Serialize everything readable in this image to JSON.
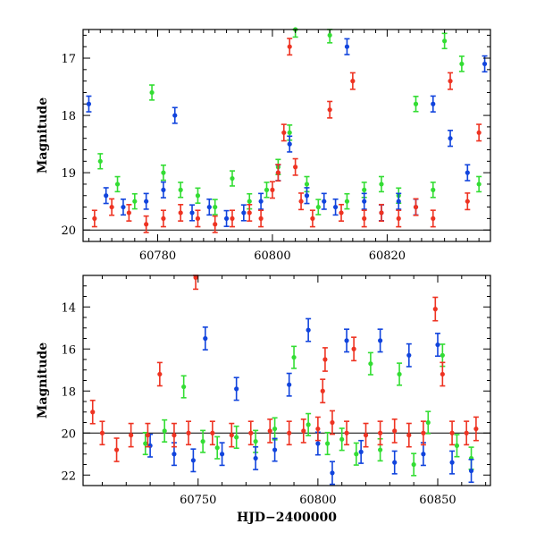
{
  "colors": {
    "green": "#33dd33",
    "blue": "#1144dd",
    "red": "#ee3322",
    "axis": "#000000"
  },
  "chart_data": [
    {
      "type": "scatter",
      "title": "",
      "xlabel": "",
      "ylabel": "Magnitude",
      "xlim": [
        60767,
        60838
      ],
      "ylim": [
        20.2,
        16.5
      ],
      "y_inverted": true,
      "xticks": [
        "60780",
        "60800",
        "60820"
      ],
      "xtick_values": [
        60780,
        60800,
        60820
      ],
      "yticks": [
        "17",
        "18",
        "19",
        "20"
      ],
      "ytick_values": [
        17,
        18,
        19,
        20
      ],
      "grid": false,
      "legend": "none",
      "series": [
        {
          "color_key": "green",
          "points": [
            [
              60770,
              18.8
            ],
            [
              60773,
              19.2
            ],
            [
              60776,
              19.5
            ],
            [
              60779,
              17.6
            ],
            [
              60781,
              19.0
            ],
            [
              60784,
              19.3
            ],
            [
              60787,
              19.4
            ],
            [
              60790,
              19.6
            ],
            [
              60793,
              19.1
            ],
            [
              60796,
              19.5
            ],
            [
              60799,
              19.3
            ],
            [
              60801,
              18.9
            ],
            [
              60803,
              18.3
            ],
            [
              60804,
              16.5
            ],
            [
              60806,
              19.2
            ],
            [
              60808,
              19.6
            ],
            [
              60810,
              16.6
            ],
            [
              60813,
              19.5
            ],
            [
              60816,
              19.3
            ],
            [
              60819,
              19.2
            ],
            [
              60822,
              19.4
            ],
            [
              60825,
              17.8
            ],
            [
              60828,
              19.3
            ],
            [
              60830,
              16.7
            ],
            [
              60833,
              17.1
            ],
            [
              60836,
              19.2
            ]
          ]
        },
        {
          "color_key": "blue",
          "points": [
            [
              60768,
              17.8
            ],
            [
              60771,
              19.4
            ],
            [
              60774,
              19.6
            ],
            [
              60778,
              19.5
            ],
            [
              60781,
              19.3
            ],
            [
              60783,
              18.0
            ],
            [
              60786,
              19.7
            ],
            [
              60789,
              19.6
            ],
            [
              60792,
              19.8
            ],
            [
              60795,
              19.7
            ],
            [
              60798,
              19.5
            ],
            [
              60801,
              19.0
            ],
            [
              60803,
              18.5
            ],
            [
              60806,
              19.4
            ],
            [
              60809,
              19.5
            ],
            [
              60811,
              19.6
            ],
            [
              60813,
              16.8
            ],
            [
              60816,
              19.5
            ],
            [
              60819,
              19.7
            ],
            [
              60822,
              19.5
            ],
            [
              60825,
              19.6
            ],
            [
              60828,
              17.8
            ],
            [
              60831,
              18.4
            ],
            [
              60834,
              19.0
            ],
            [
              60837,
              17.1
            ]
          ]
        },
        {
          "color_key": "red",
          "points": [
            [
              60769,
              19.8
            ],
            [
              60772,
              19.6
            ],
            [
              60775,
              19.7
            ],
            [
              60778,
              19.9
            ],
            [
              60781,
              19.8
            ],
            [
              60784,
              19.7
            ],
            [
              60787,
              19.8
            ],
            [
              60790,
              19.9
            ],
            [
              60793,
              19.8
            ],
            [
              60796,
              19.7
            ],
            [
              60798,
              19.8
            ],
            [
              60800,
              19.3
            ],
            [
              60801,
              19.0
            ],
            [
              60802,
              18.3
            ],
            [
              60803,
              16.8
            ],
            [
              60804,
              18.9
            ],
            [
              60805,
              19.5
            ],
            [
              60807,
              19.8
            ],
            [
              60810,
              17.9
            ],
            [
              60812,
              19.7
            ],
            [
              60814,
              17.4
            ],
            [
              60816,
              19.8
            ],
            [
              60819,
              19.7
            ],
            [
              60822,
              19.8
            ],
            [
              60825,
              19.6
            ],
            [
              60828,
              19.8
            ],
            [
              60831,
              17.4
            ],
            [
              60834,
              19.5
            ],
            [
              60836,
              18.3
            ]
          ]
        }
      ]
    },
    {
      "type": "scatter",
      "title": "",
      "xlabel": "HJD−2400000",
      "ylabel": "Magnitude",
      "xlim": [
        60702,
        60872
      ],
      "ylim": [
        22.5,
        12.5
      ],
      "y_inverted": true,
      "xticks": [
        "60750",
        "60800",
        "60850"
      ],
      "xtick_values": [
        60750,
        60800,
        60850
      ],
      "yticks": [
        "14",
        "16",
        "18",
        "20",
        "22"
      ],
      "ytick_values": [
        14,
        16,
        18,
        20,
        22
      ],
      "grid": false,
      "legend": "none",
      "series": [
        {
          "color_key": "green",
          "points": [
            [
              60728,
              20.5
            ],
            [
              60736,
              19.9
            ],
            [
              60744,
              17.8
            ],
            [
              60752,
              20.4
            ],
            [
              60758,
              20.7
            ],
            [
              60766,
              20.2
            ],
            [
              60774,
              20.4
            ],
            [
              60782,
              19.8
            ],
            [
              60790,
              16.4
            ],
            [
              60796,
              19.6
            ],
            [
              60804,
              20.5
            ],
            [
              60810,
              20.3
            ],
            [
              60816,
              21.0
            ],
            [
              60822,
              16.7
            ],
            [
              60826,
              20.8
            ],
            [
              60834,
              17.2
            ],
            [
              60840,
              21.5
            ],
            [
              60846,
              19.5
            ],
            [
              60852,
              16.3
            ],
            [
              60858,
              20.6
            ],
            [
              60864,
              21.2
            ]
          ]
        },
        {
          "color_key": "blue",
          "points": [
            [
              60730,
              20.6
            ],
            [
              60740,
              21.0
            ],
            [
              60748,
              21.3
            ],
            [
              60753,
              15.5
            ],
            [
              60760,
              21.0
            ],
            [
              60766,
              17.9
            ],
            [
              60774,
              21.2
            ],
            [
              60782,
              20.8
            ],
            [
              60788,
              17.7
            ],
            [
              60796,
              15.1
            ],
            [
              60800,
              20.5
            ],
            [
              60806,
              21.9
            ],
            [
              60812,
              15.6
            ],
            [
              60818,
              20.9
            ],
            [
              60826,
              15.6
            ],
            [
              60832,
              21.4
            ],
            [
              60838,
              16.3
            ],
            [
              60844,
              21.0
            ],
            [
              60850,
              15.8
            ],
            [
              60856,
              21.4
            ],
            [
              60864,
              21.8
            ]
          ]
        },
        {
          "color_key": "red",
          "points": [
            [
              60706,
              19.0
            ],
            [
              60710,
              20.0
            ],
            [
              60716,
              20.8
            ],
            [
              60722,
              20.1
            ],
            [
              60729,
              20.1
            ],
            [
              60734,
              17.2
            ],
            [
              60740,
              20.1
            ],
            [
              60746,
              20.0
            ],
            [
              60749,
              12.6
            ],
            [
              60756,
              20.0
            ],
            [
              60764,
              20.1
            ],
            [
              60772,
              20.0
            ],
            [
              60780,
              19.9
            ],
            [
              60788,
              20.0
            ],
            [
              60794,
              19.9
            ],
            [
              60800,
              19.8
            ],
            [
              60802,
              18.0
            ],
            [
              60803,
              16.5
            ],
            [
              60806,
              19.5
            ],
            [
              60812,
              20.0
            ],
            [
              60815,
              16.0
            ],
            [
              60820,
              20.1
            ],
            [
              60826,
              20.0
            ],
            [
              60832,
              19.9
            ],
            [
              60838,
              20.1
            ],
            [
              60844,
              20.0
            ],
            [
              60849,
              14.1
            ],
            [
              60852,
              17.2
            ],
            [
              60856,
              20.0
            ],
            [
              60862,
              20.0
            ],
            [
              60866,
              19.8
            ]
          ]
        }
      ]
    }
  ]
}
